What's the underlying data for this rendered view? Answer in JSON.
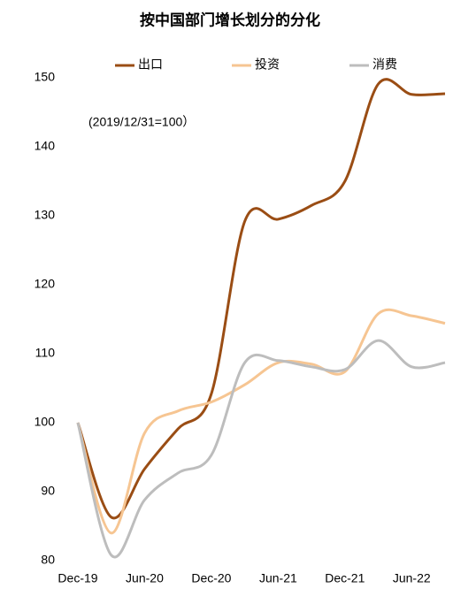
{
  "chart_data": {
    "type": "line",
    "title": "按中国部门增长划分的分化",
    "subtitle": "(2019/12/31=100）",
    "categories": [
      "Dec-19",
      null,
      "Jun-20",
      null,
      "Dec-20",
      null,
      "Jun-21",
      null,
      "Dec-21",
      null,
      "Jun-22",
      null
    ],
    "series": [
      {
        "name": "出口",
        "color": "#9a4d14",
        "values": [
          100,
          86.3,
          93.3,
          99.1,
          104.2,
          129.2,
          129.5,
          131.5,
          135,
          149.1,
          147.6,
          147.7
        ]
      },
      {
        "name": "投资",
        "color": "#f6c592",
        "values": [
          100,
          84,
          98.5,
          101.7,
          103,
          105.5,
          108.7,
          108.5,
          107.4,
          115.8,
          115.5,
          114.4
        ]
      },
      {
        "name": "消费",
        "color": "#bdbdbd",
        "values": [
          100,
          80.8,
          88.8,
          92.7,
          95.3,
          108.7,
          109,
          108.1,
          107.7,
          111.9,
          108.1,
          108.7
        ]
      }
    ],
    "ylim": [
      80,
      150
    ],
    "yticks": [
      80,
      90,
      100,
      110,
      120,
      130,
      140,
      150
    ],
    "grid": false,
    "legend": "top"
  }
}
